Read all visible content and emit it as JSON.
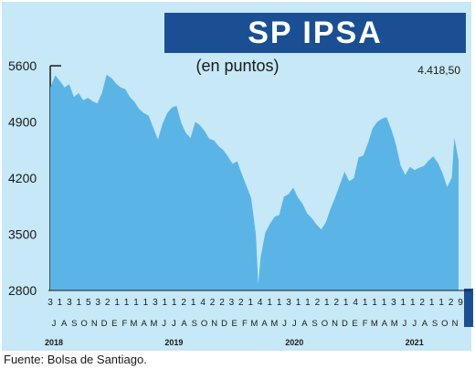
{
  "chart_data": {
    "type": "area",
    "title": "SP IPSA",
    "subtitle": "(en puntos)",
    "last_value_label": "4.418,50",
    "source": "Fuente: Bolsa de Santiago.",
    "ylim": [
      2800,
      5600
    ],
    "yticks": [
      2800,
      3500,
      4200,
      4900,
      5600
    ],
    "ytick_labels": [
      "2800",
      "3500",
      "4200",
      "4900",
      "5600"
    ],
    "grid": false,
    "colors": {
      "area": "#5ab5e6",
      "background": "#c6e8f7",
      "title_bar": "#1a4f94",
      "axis": "#1a1a1a"
    },
    "x_start": "2018-07-03",
    "x_end": "2021-11-09",
    "day_labels": [
      "3",
      "1",
      "3",
      "1",
      "5",
      "3",
      "2",
      "1",
      "1",
      "1",
      "1",
      "3",
      "1",
      "1",
      "2",
      "1",
      "4",
      "2",
      "2",
      "3",
      "2",
      "1",
      "4",
      "1",
      "1",
      "3",
      "1",
      "1",
      "2",
      "1",
      "2",
      "1",
      "4",
      "1",
      "1",
      "1",
      "3",
      "1",
      "1",
      "2",
      "1",
      "1",
      "2",
      "9"
    ],
    "months": [
      {
        "label": "J",
        "date": "2018-07"
      },
      {
        "label": "A",
        "date": "2018-08"
      },
      {
        "label": "S",
        "date": "2018-09"
      },
      {
        "label": "O",
        "date": "2018-10"
      },
      {
        "label": "N",
        "date": "2018-11"
      },
      {
        "label": "D",
        "date": "2018-12"
      },
      {
        "label": "E",
        "date": "2019-01"
      },
      {
        "label": "F",
        "date": "2019-02"
      },
      {
        "label": "M",
        "date": "2019-03"
      },
      {
        "label": "A",
        "date": "2019-04"
      },
      {
        "label": "M",
        "date": "2019-05"
      },
      {
        "label": "J",
        "date": "2019-06"
      },
      {
        "label": "J",
        "date": "2019-07"
      },
      {
        "label": "A",
        "date": "2019-08"
      },
      {
        "label": "S",
        "date": "2019-09"
      },
      {
        "label": "O",
        "date": "2019-10"
      },
      {
        "label": "N",
        "date": "2019-11"
      },
      {
        "label": "D",
        "date": "2019-12"
      },
      {
        "label": "E",
        "date": "2020-01"
      },
      {
        "label": "F",
        "date": "2020-02"
      },
      {
        "label": "M",
        "date": "2020-03"
      },
      {
        "label": "A",
        "date": "2020-04"
      },
      {
        "label": "M",
        "date": "2020-05"
      },
      {
        "label": "J",
        "date": "2020-06"
      },
      {
        "label": "J",
        "date": "2020-07"
      },
      {
        "label": "A",
        "date": "2020-08"
      },
      {
        "label": "S",
        "date": "2020-09"
      },
      {
        "label": "O",
        "date": "2020-10"
      },
      {
        "label": "N",
        "date": "2020-11"
      },
      {
        "label": "D",
        "date": "2020-12"
      },
      {
        "label": "E",
        "date": "2021-01"
      },
      {
        "label": "F",
        "date": "2021-02"
      },
      {
        "label": "M",
        "date": "2021-03"
      },
      {
        "label": "A",
        "date": "2021-04"
      },
      {
        "label": "M",
        "date": "2021-05"
      },
      {
        "label": "J",
        "date": "2021-06"
      },
      {
        "label": "J",
        "date": "2021-07"
      },
      {
        "label": "A",
        "date": "2021-08"
      },
      {
        "label": "S",
        "date": "2021-09"
      },
      {
        "label": "O",
        "date": "2021-10"
      },
      {
        "label": "N",
        "date": "2021-11"
      }
    ],
    "years": [
      {
        "label": "2018",
        "date": "2018-07"
      },
      {
        "label": "2019",
        "date": "2019-07"
      },
      {
        "label": "2020",
        "date": "2020-07"
      },
      {
        "label": "2021",
        "date": "2021-07"
      }
    ],
    "series": [
      {
        "values": [
          [
            "2018-07-03",
            5330
          ],
          [
            "2018-07-18",
            5480
          ],
          [
            "2018-08-01",
            5410
          ],
          [
            "2018-08-15",
            5330
          ],
          [
            "2018-08-29",
            5370
          ],
          [
            "2018-09-12",
            5210
          ],
          [
            "2018-09-26",
            5260
          ],
          [
            "2018-10-10",
            5170
          ],
          [
            "2018-10-24",
            5200
          ],
          [
            "2018-11-07",
            5160
          ],
          [
            "2018-11-21",
            5130
          ],
          [
            "2018-12-05",
            5260
          ],
          [
            "2018-12-19",
            5490
          ],
          [
            "2019-01-02",
            5450
          ],
          [
            "2019-01-16",
            5380
          ],
          [
            "2019-01-30",
            5330
          ],
          [
            "2019-02-13",
            5310
          ],
          [
            "2019-02-27",
            5210
          ],
          [
            "2019-03-13",
            5150
          ],
          [
            "2019-03-27",
            5060
          ],
          [
            "2019-04-10",
            5010
          ],
          [
            "2019-04-24",
            4980
          ],
          [
            "2019-05-08",
            4830
          ],
          [
            "2019-05-22",
            4680
          ],
          [
            "2019-06-05",
            4880
          ],
          [
            "2019-06-19",
            5010
          ],
          [
            "2019-07-03",
            5080
          ],
          [
            "2019-07-17",
            5100
          ],
          [
            "2019-07-31",
            4890
          ],
          [
            "2019-08-14",
            4760
          ],
          [
            "2019-08-28",
            4700
          ],
          [
            "2019-09-11",
            4900
          ],
          [
            "2019-09-25",
            4860
          ],
          [
            "2019-10-09",
            4790
          ],
          [
            "2019-10-23",
            4690
          ],
          [
            "2019-11-06",
            4670
          ],
          [
            "2019-11-20",
            4600
          ],
          [
            "2019-12-04",
            4550
          ],
          [
            "2019-12-18",
            4470
          ],
          [
            "2020-01-01",
            4380
          ],
          [
            "2020-01-15",
            4410
          ],
          [
            "2020-01-29",
            4250
          ],
          [
            "2020-02-12",
            4100
          ],
          [
            "2020-02-26",
            3950
          ],
          [
            "2020-03-11",
            3500
          ],
          [
            "2020-03-18",
            2880
          ],
          [
            "2020-03-25",
            3210
          ],
          [
            "2020-04-08",
            3520
          ],
          [
            "2020-04-22",
            3630
          ],
          [
            "2020-05-06",
            3720
          ],
          [
            "2020-05-20",
            3740
          ],
          [
            "2020-06-03",
            3970
          ],
          [
            "2020-06-17",
            4000
          ],
          [
            "2020-07-01",
            4080
          ],
          [
            "2020-07-15",
            3960
          ],
          [
            "2020-07-29",
            3880
          ],
          [
            "2020-08-12",
            3760
          ],
          [
            "2020-08-26",
            3700
          ],
          [
            "2020-09-09",
            3620
          ],
          [
            "2020-09-23",
            3560
          ],
          [
            "2020-10-07",
            3650
          ],
          [
            "2020-10-21",
            3820
          ],
          [
            "2020-11-04",
            3960
          ],
          [
            "2020-11-18",
            4120
          ],
          [
            "2020-12-02",
            4280
          ],
          [
            "2020-12-16",
            4160
          ],
          [
            "2020-12-30",
            4200
          ],
          [
            "2021-01-13",
            4460
          ],
          [
            "2021-01-27",
            4480
          ],
          [
            "2021-02-10",
            4630
          ],
          [
            "2021-02-24",
            4820
          ],
          [
            "2021-03-10",
            4900
          ],
          [
            "2021-03-24",
            4940
          ],
          [
            "2021-04-07",
            4960
          ],
          [
            "2021-04-21",
            4810
          ],
          [
            "2021-05-05",
            4620
          ],
          [
            "2021-05-19",
            4360
          ],
          [
            "2021-06-02",
            4240
          ],
          [
            "2021-06-16",
            4340
          ],
          [
            "2021-06-30",
            4300
          ],
          [
            "2021-07-14",
            4330
          ],
          [
            "2021-07-28",
            4350
          ],
          [
            "2021-08-11",
            4420
          ],
          [
            "2021-08-25",
            4470
          ],
          [
            "2021-09-08",
            4390
          ],
          [
            "2021-09-22",
            4260
          ],
          [
            "2021-10-06",
            4090
          ],
          [
            "2021-10-20",
            4210
          ],
          [
            "2021-10-27",
            4700
          ],
          [
            "2021-11-03",
            4560
          ],
          [
            "2021-11-09",
            4418.5
          ]
        ]
      }
    ]
  }
}
